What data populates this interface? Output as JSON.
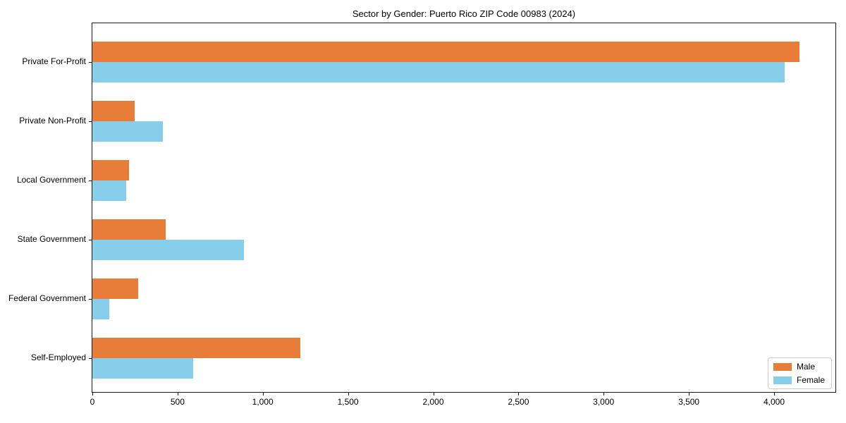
{
  "figure": {
    "title": "Sector by Gender: Puerto Rico ZIP Code 00983 (2024)"
  },
  "colors": {
    "male": "#e87d3a",
    "female": "#87ceeb",
    "spine": "#1a1a1a",
    "legend_border": "#cccccc",
    "background": "#ffffff"
  },
  "legend": {
    "position": "lower-right",
    "items": [
      {
        "label": "Male",
        "color": "#e87d3a"
      },
      {
        "label": "Female",
        "color": "#87ceeb"
      }
    ]
  },
  "chart_data": {
    "type": "bar",
    "orientation": "horizontal",
    "title": "Sector by Gender: Puerto Rico ZIP Code 00983 (2024)",
    "xlabel": "",
    "ylabel": "",
    "grid": false,
    "legend_position": "lower right",
    "categories": [
      "Private For-Profit",
      "Private Non-Profit",
      "Local Government",
      "State Government",
      "Federal Government",
      "Self-Employed"
    ],
    "series": [
      {
        "name": "Male",
        "color": "#e87d3a",
        "values": [
          4150,
          250,
          215,
          430,
          270,
          1220
        ]
      },
      {
        "name": "Female",
        "color": "#87ceeb",
        "values": [
          4060,
          415,
          200,
          890,
          100,
          590
        ]
      }
    ],
    "xlim": [
      0,
      4360
    ],
    "xticks": [
      0,
      500,
      1000,
      1500,
      2000,
      2500,
      3000,
      3500,
      4000
    ],
    "xtick_labels": [
      "0",
      "500",
      "1,000",
      "1,500",
      "2,000",
      "2,500",
      "3,000",
      "3,500",
      "4,000"
    ]
  }
}
